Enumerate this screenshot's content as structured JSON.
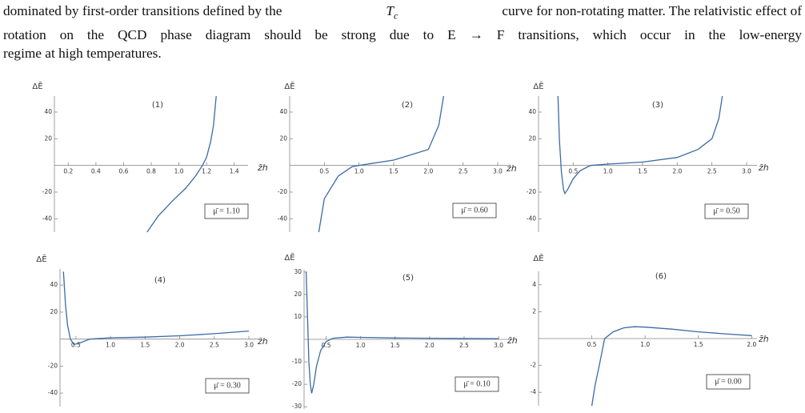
{
  "text": {
    "l1a": "dominated by first-order transitions defined by the",
    "l1T": "T",
    "l1c": "c",
    "l1b": "curve for non-rotating matter.  The relativistic effect of",
    "l2": "rotation on the QCD phase diagram should be strong due to E → F transitions, which occur in the low-energy",
    "l3": "regime at high temperatures."
  },
  "chart_data": [
    {
      "type": "line",
      "panel": "(1)",
      "annotation": "μ̄ = 1.10",
      "y_label": "ΔĒ",
      "x_label": "z̄h",
      "x": [
        0.77,
        0.85,
        0.95,
        1.05,
        1.12,
        1.17,
        1.2,
        1.23,
        1.25,
        1.27
      ],
      "series": [
        {
          "color": "#3b6ba5",
          "values": [
            -50,
            -38,
            -27,
            -17,
            -8,
            0,
            6,
            18,
            30,
            52
          ]
        }
      ],
      "xlim": [
        0.1,
        1.5
      ],
      "ylim": [
        -50,
        52
      ],
      "xticks": [
        0.2,
        0.4,
        0.6,
        0.8,
        {
          "value": 1,
          "label": "1.0"
        },
        1.2,
        1.4
      ],
      "yticks": [
        -40,
        -20,
        20,
        40
      ]
    },
    {
      "type": "line",
      "panel": "(2)",
      "annotation": "μ̄ = 0.60",
      "y_label": "ΔĒ",
      "x_label": "z̄h",
      "x": [
        0.42,
        0.5,
        0.7,
        0.9,
        1.0,
        1.5,
        2.0,
        2.15,
        2.22
      ],
      "series": [
        {
          "color": "#3b6ba5",
          "values": [
            -50,
            -25,
            -8,
            -1,
            0,
            4,
            12,
            30,
            52
          ]
        }
      ],
      "xlim": [
        0,
        3.15
      ],
      "ylim": [
        -50,
        52
      ],
      "xticks": [
        0.5,
        {
          "value": 1,
          "label": "1.0"
        },
        1.5,
        {
          "value": 2,
          "label": "2.0"
        },
        2.5,
        {
          "value": 3,
          "label": "3.0"
        }
      ],
      "yticks": [
        -40,
        -20,
        20,
        40
      ]
    },
    {
      "type": "line",
      "panel": "(3)",
      "annotation": "μ̄ = 0.50",
      "y_label": "ΔĒ",
      "x_label": "z̄h",
      "x": [
        0.28,
        0.3,
        0.33,
        0.36,
        0.38,
        0.42,
        0.5,
        0.6,
        0.75,
        1.0,
        1.5,
        2.0,
        2.3,
        2.5,
        2.6,
        2.65
      ],
      "series": [
        {
          "color": "#3b6ba5",
          "values": [
            52,
            20,
            -5,
            -18,
            -21,
            -18,
            -10,
            -4,
            0,
            1,
            2.5,
            6,
            12,
            20,
            35,
            52
          ]
        }
      ],
      "xlim": [
        0,
        3.15
      ],
      "ylim": [
        -50,
        52
      ],
      "xticks": [
        0.5,
        {
          "value": 1,
          "label": "1.0"
        },
        1.5,
        {
          "value": 2,
          "label": "2.0"
        },
        2.5,
        {
          "value": 3,
          "label": "3.0"
        }
      ],
      "yticks": [
        -40,
        -20,
        20,
        40
      ]
    },
    {
      "type": "line",
      "panel": "(4)",
      "annotation": "μ̄ = 0.30",
      "y_label": "ΔĒ",
      "x_label": "z̄h",
      "x": [
        0.32,
        0.35,
        0.38,
        0.42,
        0.47,
        0.55,
        0.7,
        1,
        1.5,
        2,
        2.5,
        3
      ],
      "series": [
        {
          "color": "#3b6ba5",
          "values": [
            50,
            25,
            10,
            0,
            -4,
            -3,
            0,
            1,
            1.5,
            2.5,
            4,
            6
          ]
        }
      ],
      "xlim": [
        0.27,
        3.15
      ],
      "ylim": [
        -50,
        52
      ],
      "xticks": [
        0.5,
        {
          "value": 1,
          "label": "1.0"
        },
        1.5,
        {
          "value": 2,
          "label": "2.0"
        },
        2.5,
        {
          "value": 3,
          "label": "3.0"
        }
      ],
      "yticks": [
        -40,
        -20,
        20,
        40
      ]
    },
    {
      "type": "line",
      "panel": "(5)",
      "annotation": "μ̄ = 0.10",
      "y_label": "ΔĒ",
      "x_label": "z̄h",
      "x": [
        0.21,
        0.23,
        0.25,
        0.27,
        0.29,
        0.32,
        0.36,
        0.42,
        0.5,
        0.6,
        0.8,
        1.0,
        1.5,
        2,
        3
      ],
      "series": [
        {
          "color": "#3b6ba5",
          "values": [
            30,
            10,
            -10,
            -20,
            -24,
            -20,
            -12,
            -5,
            -1,
            0.5,
            1,
            0.9,
            0.6,
            0.5,
            0.3
          ]
        }
      ],
      "xlim": [
        0.18,
        3.15
      ],
      "ylim": [
        -31,
        31
      ],
      "xticks": [
        0.5,
        {
          "value": 1,
          "label": "1.0"
        },
        1.5,
        {
          "value": 2,
          "label": "2.0"
        },
        2.5,
        {
          "value": 3,
          "label": "3.0"
        }
      ],
      "yticks": [
        -30,
        -20,
        -10,
        10,
        20,
        30
      ]
    },
    {
      "type": "line",
      "panel": "(6)",
      "annotation": "μ̄ = 0.00",
      "y_label": "ΔĒ",
      "x_label": "z̄h",
      "x": [
        0.5,
        0.53,
        0.57,
        0.62,
        0.7,
        0.8,
        0.9,
        1.0,
        1.25,
        1.5,
        1.75,
        2.0
      ],
      "series": [
        {
          "color": "#3b6ba5",
          "values": [
            -5,
            -3.5,
            -2,
            0,
            0.5,
            0.8,
            0.88,
            0.85,
            0.7,
            0.5,
            0.35,
            0.22
          ]
        }
      ],
      "xlim": [
        0,
        2.05
      ],
      "ylim": [
        -5,
        5
      ],
      "xticks": [
        0.5,
        {
          "value": 1,
          "label": "1.0"
        },
        1.5,
        {
          "value": 2,
          "label": "2.0"
        }
      ],
      "yticks": [
        -4,
        -2,
        2,
        4
      ]
    }
  ]
}
